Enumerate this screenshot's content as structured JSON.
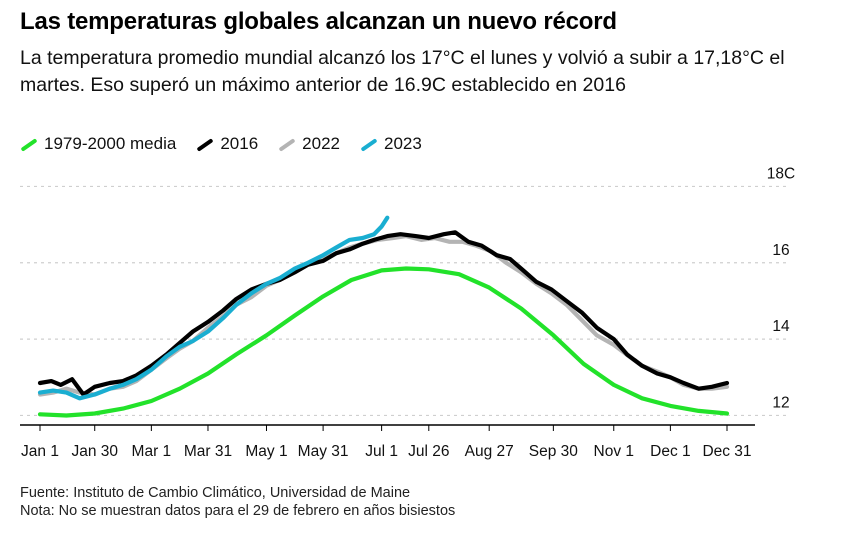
{
  "title": "Las temperaturas globales alcanzan un nuevo récord",
  "subtitle": "La temperatura promedio mundial alcanzó los 17°C el lunes y volvió a subir a 17,18°C el martes. Eso superó un máximo anterior de 16.9C establecido en 2016",
  "footer": {
    "source": "Fuente: Instituto de Cambio Climático, Universidad de Maine",
    "note": "Nota: No se muestran datos para el 29 de febrero en años bisiestos"
  },
  "colors": {
    "media": "#22e22a",
    "y2016": "#000000",
    "y2022": "#b4b4b4",
    "y2023": "#1aaed1",
    "grid": "#cfcfcf",
    "axis": "#000000"
  },
  "chart_data": {
    "type": "line",
    "xlabel": "",
    "ylabel": "",
    "x_ticks": [
      {
        "label": "Jan 1",
        "day": 1
      },
      {
        "label": "Jan 30",
        "day": 30
      },
      {
        "label": "Mar 1",
        "day": 60
      },
      {
        "label": "Mar 31",
        "day": 90
      },
      {
        "label": "May 1",
        "day": 121
      },
      {
        "label": "May 31",
        "day": 151
      },
      {
        "label": "Jul 1",
        "day": 182
      },
      {
        "label": "Jul 26",
        "day": 207
      },
      {
        "label": "Aug 27",
        "day": 239
      },
      {
        "label": "Sep 30",
        "day": 273
      },
      {
        "label": "Nov 1",
        "day": 305
      },
      {
        "label": "Dec 1",
        "day": 335
      },
      {
        "label": "Dec 31",
        "day": 365
      }
    ],
    "y_ticks": [
      {
        "label": "12",
        "value": 12
      },
      {
        "label": "14",
        "value": 14
      },
      {
        "label": "16",
        "value": 16
      },
      {
        "label": "18C",
        "value": 18
      }
    ],
    "ylim": [
      11.75,
      18.3
    ],
    "xlim": [
      1,
      365
    ],
    "grid": "horizontal dashed",
    "legend_position": "top-left",
    "series": [
      {
        "name": "1979-2000 media",
        "color_key": "media",
        "x": [
          1,
          15,
          30,
          45,
          60,
          75,
          90,
          105,
          121,
          136,
          151,
          166,
          182,
          195,
          207,
          223,
          239,
          256,
          273,
          289,
          305,
          320,
          335,
          350,
          365
        ],
        "y": [
          12.03,
          12.0,
          12.05,
          12.18,
          12.38,
          12.7,
          13.1,
          13.6,
          14.1,
          14.62,
          15.12,
          15.55,
          15.8,
          15.85,
          15.83,
          15.7,
          15.35,
          14.8,
          14.1,
          13.35,
          12.8,
          12.45,
          12.25,
          12.12,
          12.05
        ]
      },
      {
        "name": "2016",
        "color_key": "y2016",
        "x": [
          1,
          7,
          12,
          18,
          24,
          30,
          38,
          45,
          52,
          60,
          68,
          75,
          82,
          90,
          98,
          105,
          113,
          121,
          128,
          136,
          143,
          151,
          158,
          165,
          172,
          178,
          185,
          192,
          200,
          207,
          215,
          221,
          228,
          235,
          243,
          250,
          257,
          264,
          272,
          280,
          288,
          296,
          305,
          312,
          320,
          328,
          335,
          342,
          350,
          357,
          365
        ],
        "y": [
          12.85,
          12.9,
          12.8,
          12.95,
          12.55,
          12.75,
          12.85,
          12.9,
          13.05,
          13.3,
          13.6,
          13.9,
          14.2,
          14.45,
          14.75,
          15.05,
          15.3,
          15.45,
          15.55,
          15.75,
          15.95,
          16.05,
          16.25,
          16.35,
          16.5,
          16.6,
          16.7,
          16.75,
          16.7,
          16.65,
          16.75,
          16.8,
          16.55,
          16.45,
          16.2,
          16.1,
          15.8,
          15.5,
          15.3,
          15.0,
          14.7,
          14.3,
          14.0,
          13.6,
          13.3,
          13.1,
          13.0,
          12.85,
          12.7,
          12.75,
          12.85
        ]
      },
      {
        "name": "2022",
        "color_key": "y2022",
        "x": [
          1,
          8,
          15,
          22,
          30,
          38,
          45,
          52,
          60,
          68,
          75,
          82,
          90,
          98,
          105,
          113,
          121,
          128,
          136,
          143,
          151,
          158,
          165,
          172,
          180,
          188,
          195,
          203,
          210,
          218,
          225,
          232,
          240,
          248,
          256,
          264,
          272,
          280,
          288,
          296,
          305,
          313,
          320,
          328,
          335,
          342,
          350,
          357,
          365
        ],
        "y": [
          12.55,
          12.6,
          12.7,
          12.6,
          12.55,
          12.7,
          12.75,
          12.9,
          13.2,
          13.5,
          13.75,
          13.95,
          14.3,
          14.6,
          14.9,
          15.1,
          15.4,
          15.55,
          15.75,
          15.95,
          16.1,
          16.25,
          16.4,
          16.5,
          16.6,
          16.65,
          16.7,
          16.6,
          16.65,
          16.55,
          16.55,
          16.45,
          16.3,
          16.0,
          15.75,
          15.45,
          15.2,
          14.9,
          14.5,
          14.1,
          13.85,
          13.55,
          13.3,
          13.15,
          13.0,
          12.8,
          12.7,
          12.7,
          12.75
        ]
      },
      {
        "name": "2023",
        "color_key": "y2023",
        "x": [
          1,
          8,
          15,
          22,
          30,
          38,
          45,
          52,
          60,
          68,
          75,
          82,
          90,
          98,
          105,
          113,
          121,
          128,
          136,
          143,
          151,
          158,
          165,
          172,
          178,
          182,
          185
        ],
        "y": [
          12.6,
          12.65,
          12.6,
          12.45,
          12.55,
          12.7,
          12.8,
          12.95,
          13.2,
          13.55,
          13.8,
          13.95,
          14.2,
          14.55,
          14.9,
          15.2,
          15.45,
          15.6,
          15.85,
          16.0,
          16.2,
          16.4,
          16.6,
          16.65,
          16.75,
          16.95,
          17.18
        ]
      }
    ]
  }
}
